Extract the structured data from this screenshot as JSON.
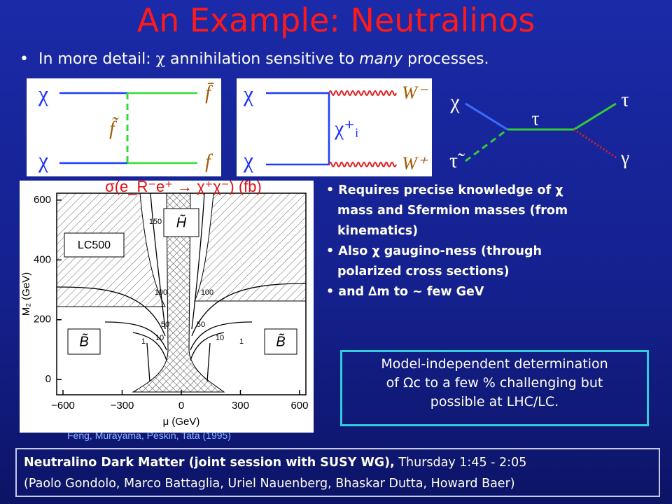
{
  "title": "An Example: Neutralinos",
  "intro": {
    "lead": "In more detail: ",
    "chi": "χ",
    "mid": " annihilation sensitive to ",
    "em": "many",
    "tail": " processes."
  },
  "diagrams": [
    {
      "labels": [
        "χ",
        "χ",
        "f̄",
        "f",
        "f̃"
      ]
    },
    {
      "labels": [
        "χ",
        "χ",
        "W⁻",
        "W⁺",
        "χ⁺ᵢ"
      ]
    },
    {
      "labels": [
        "χ",
        "τ̃",
        "τ",
        "τ",
        "γ"
      ]
    }
  ],
  "plot": {
    "title": "σ(e_R⁻e⁺ → χ⁺χ⁻) (fb)",
    "x_label": "μ  (GeV)",
    "y_label": "M₂  (GeV)",
    "xlim": [
      -632,
      632
    ],
    "ylim": [
      -51,
      623
    ],
    "xticks": [
      {
        "value": -600,
        "label": "−600"
      },
      {
        "value": -300,
        "label": "−300"
      },
      0,
      300,
      600
    ],
    "yticks": [
      0,
      200,
      400,
      600
    ],
    "region_labels": [
      "LC500",
      "H̃",
      "B̃",
      "B̃"
    ],
    "contour_labels": [
      "150",
      "100",
      "50",
      "10",
      "1",
      "100",
      "50",
      "10",
      "1"
    ],
    "citation": "Feng, Murayama, Peskin, Tata (1995)"
  },
  "bullets": [
    [
      "Requires precise knowledge of χ",
      "mass and Sfermion masses (from",
      "kinematics)"
    ],
    [
      "Also χ gaugino-ness (through",
      "polarized cross sections)"
    ],
    [
      "and ∆m to ~ few GeV"
    ]
  ],
  "callout": [
    "Model-independent determination",
    "of Ωc to a few % challenging but",
    "possible at LHC/LC."
  ],
  "footer": {
    "bold": "Neutralino Dark Matter (joint session with SUSY WG),",
    "time": " Thursday 1:45 - 2:05",
    "speakers": "(Paolo Gondolo, Marco Battaglia, Uriel Nauenberg, Bhaskar Dutta, Howard Baer)"
  }
}
